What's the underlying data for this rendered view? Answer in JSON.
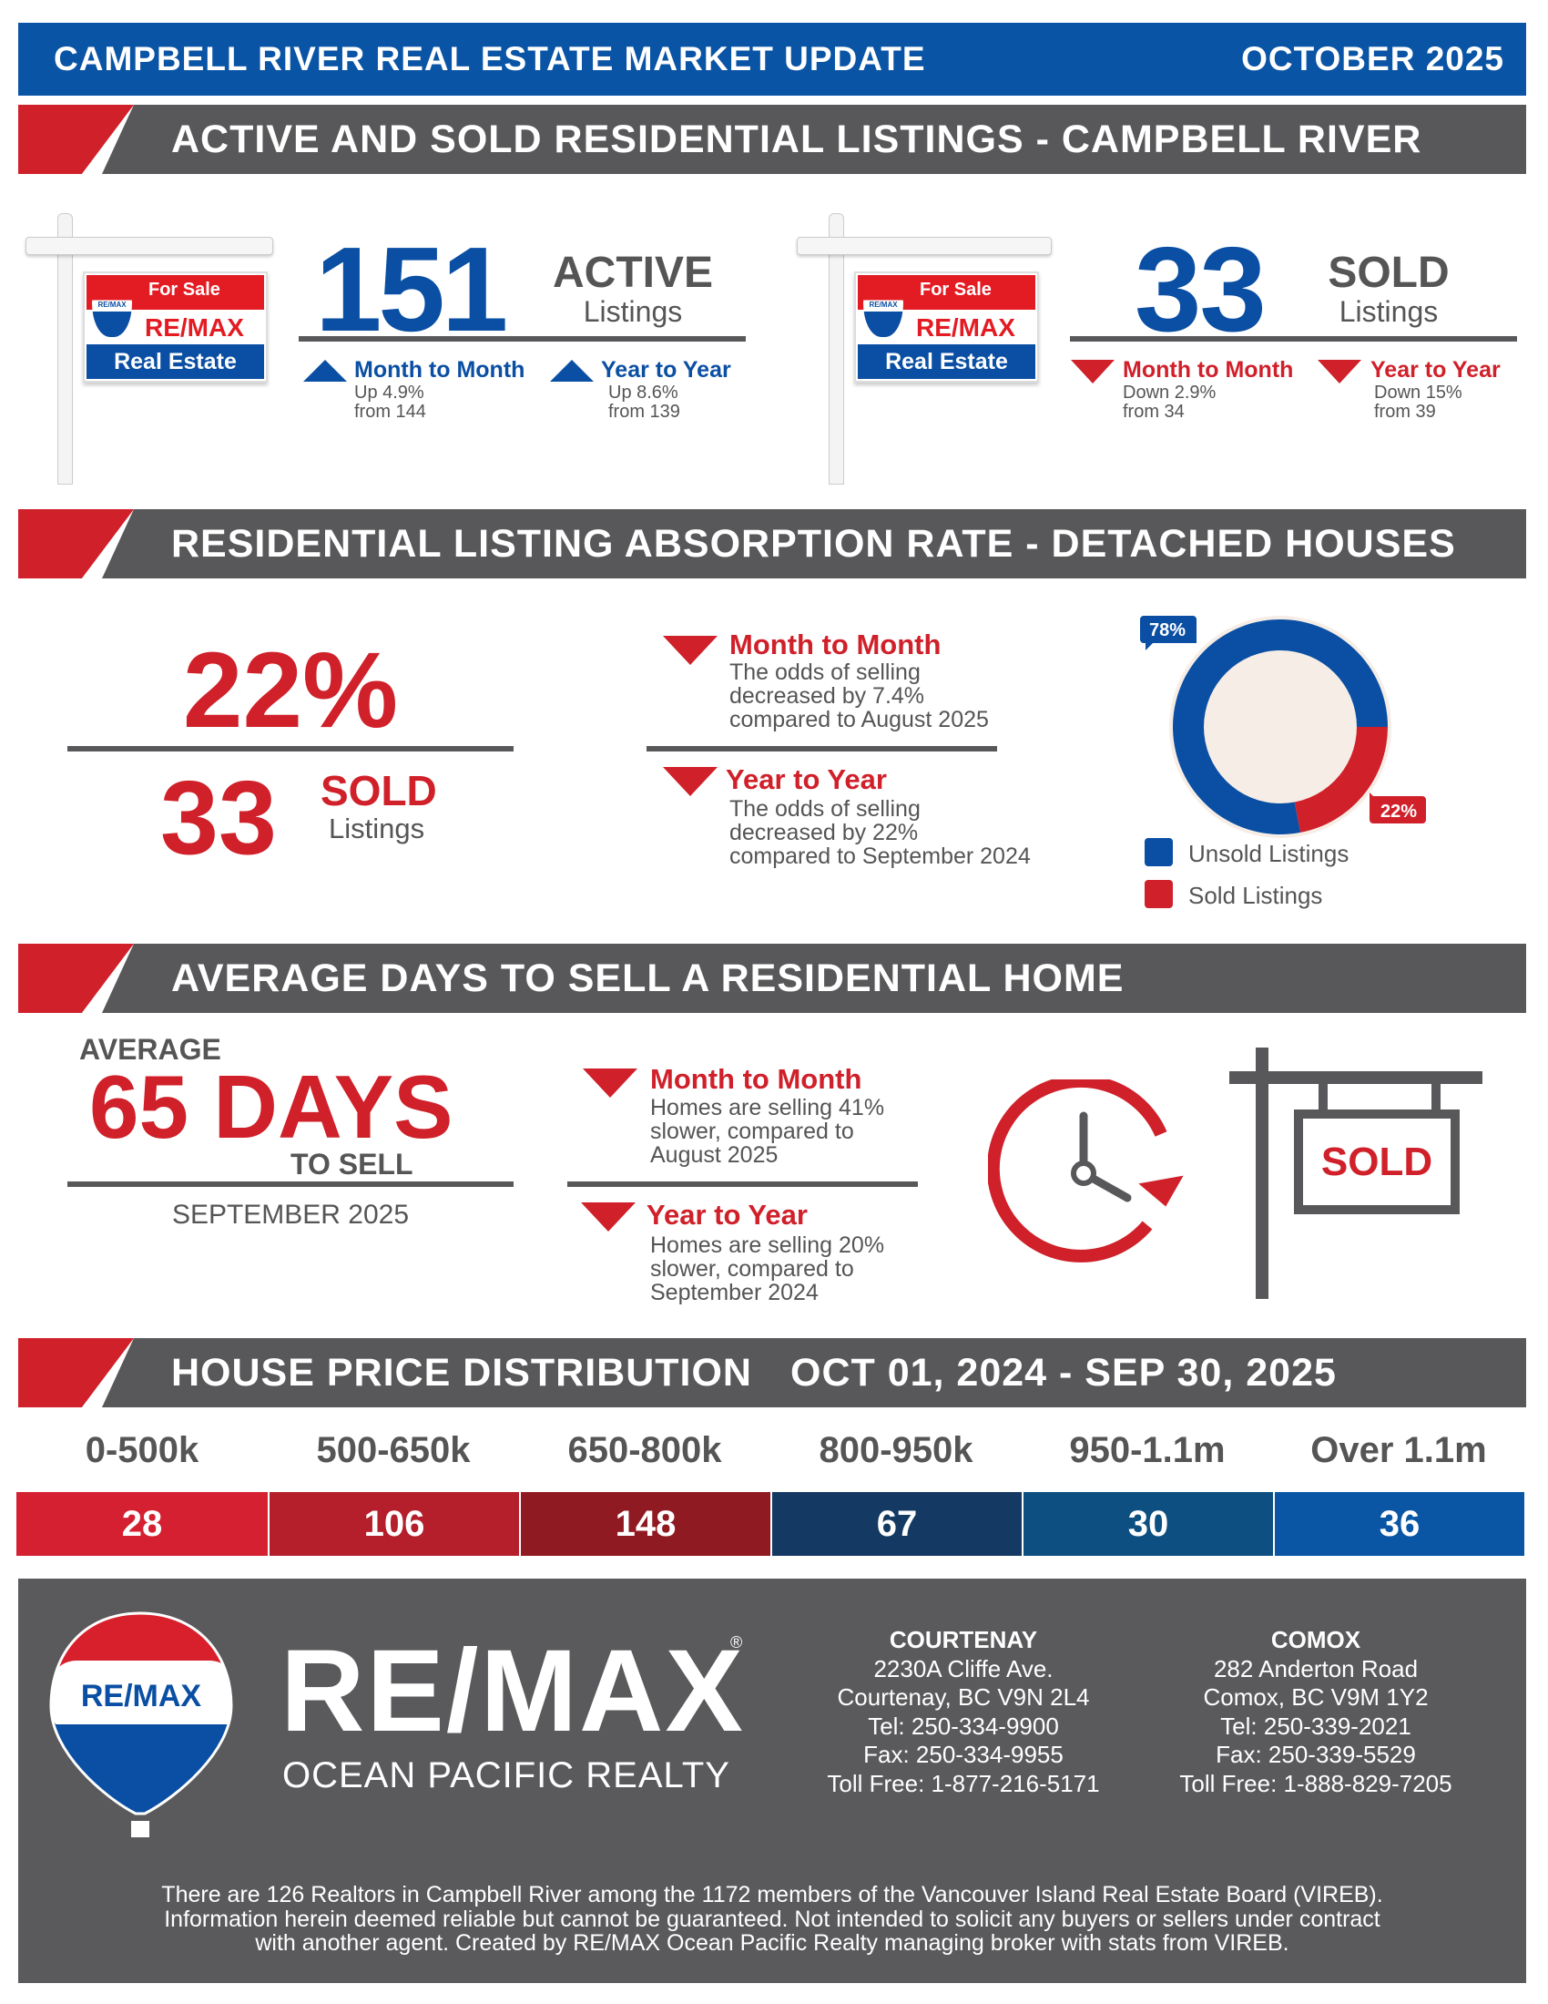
{
  "header": {
    "title": "CAMPBELL RIVER REAL ESTATE MARKET UPDATE",
    "date": "OCTOBER 2025"
  },
  "colors": {
    "blue": "#0a4fa3",
    "red": "#d0202a",
    "gray": "#58585a"
  },
  "section1": {
    "title": "ACTIVE AND SOLD RESIDENTIAL LISTINGS - CAMPBELL RIVER",
    "sign": {
      "for_sale": "For Sale",
      "brand": "RE/MAX",
      "real_estate": "Real Estate",
      "balloon_text": "RE/MAX"
    },
    "active": {
      "value": "151",
      "label": "ACTIVE",
      "sublabel": "Listings",
      "mtm": {
        "title": "Month to Month",
        "line1": "Up 4.9%",
        "line2": "from 144",
        "direction": "up"
      },
      "yty": {
        "title": "Year to Year",
        "line1": "Up 8.6%",
        "line2": "from 139",
        "direction": "up"
      }
    },
    "sold": {
      "value": "33",
      "label": "SOLD",
      "sublabel": "Listings",
      "mtm": {
        "title": "Month to Month",
        "line1": "Down 2.9%",
        "line2": "from 34",
        "direction": "down"
      },
      "yty": {
        "title": "Year to Year",
        "line1": "Down 15%",
        "line2": "from 39",
        "direction": "down"
      }
    }
  },
  "section2": {
    "title": "RESIDENTIAL LISTING ABSORPTION RATE - DETACHED HOUSES",
    "rate": "22%",
    "sold_value": "33",
    "sold_label": "SOLD",
    "sold_sublabel": "Listings",
    "mtm": {
      "title": "Month to Month",
      "lines": [
        "The odds of selling",
        "decreased by 7.4%",
        "compared to August 2025"
      ]
    },
    "yty": {
      "title": "Year to Year",
      "lines": [
        "The odds of selling",
        "decreased by 22%",
        "compared to September 2024"
      ]
    },
    "donut": {
      "unsold_pct": 78,
      "sold_pct": 22,
      "unsold_label": "78%",
      "sold_label": "22%",
      "legend": {
        "unsold": "Unsold Listings",
        "sold": "Sold Listings"
      }
    }
  },
  "section3": {
    "title": "AVERAGE DAYS TO SELL A RESIDENTIAL HOME",
    "average": "AVERAGE",
    "days": "65 DAYS",
    "to_sell": "TO SELL",
    "period": "SEPTEMBER 2025",
    "mtm": {
      "title": "Month to Month",
      "lines": [
        "Homes are selling 41%",
        "slower, compared to",
        "August 2025"
      ]
    },
    "yty": {
      "title": "Year to Year",
      "lines": [
        "Homes are selling 20%",
        "slower, compared to",
        "September 2024"
      ]
    },
    "sold_sign": "SOLD"
  },
  "section4": {
    "title": "HOUSE PRICE DISTRIBUTION",
    "range": "OCT 01, 2024 - SEP 30, 2025",
    "buckets": [
      {
        "label": "0-500k",
        "count": "28",
        "color": "#d42030"
      },
      {
        "label": "500-650k",
        "count": "106",
        "color": "#b51f2c"
      },
      {
        "label": "650-800k",
        "count": "148",
        "color": "#8f1a22"
      },
      {
        "label": "800-950k",
        "count": "67",
        "color": "#143a63"
      },
      {
        "label": "950-1.1m",
        "count": "30",
        "color": "#0d4f80"
      },
      {
        "label": "Over 1.1m",
        "count": "36",
        "color": "#0b56a4"
      }
    ]
  },
  "footer": {
    "brand": "RE/MAX",
    "reg": "®",
    "tagline": "OCEAN PACIFIC REALTY",
    "balloon_text": "RE/MAX",
    "offices": [
      {
        "name": "COURTENAY",
        "address": "2230A Cliffe Ave.",
        "city": "Courtenay, BC V9N 2L4",
        "tel": "Tel: 250-334-9900",
        "fax": "Fax: 250-334-9955",
        "tollfree": "Toll Free: 1-877-216-5171"
      },
      {
        "name": "COMOX",
        "address": "282 Anderton Road",
        "city": "Comox, BC V9M 1Y2",
        "tel": "Tel: 250-339-2021",
        "fax": "Fax: 250-339-5529",
        "tollfree": "Toll Free: 1-888-829-7205"
      }
    ],
    "disclaimer": [
      "There are 126 Realtors in Campbell River among the 1172 members of the Vancouver Island Real Estate Board (VIREB).",
      "Information herein deemed reliable but cannot be guaranteed. Not intended to solicit any buyers or sellers under contract",
      "with another agent.   Created by RE/MAX Ocean Pacific Realty managing broker with stats from VIREB."
    ]
  }
}
